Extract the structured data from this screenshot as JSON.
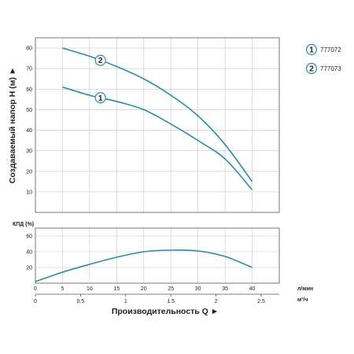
{
  "chart_data": [
    {
      "type": "line",
      "ylabel": "Создаваемый напор H (м) ►",
      "ylim": [
        0,
        85
      ],
      "yticks": [
        10,
        20,
        30,
        40,
        50,
        60,
        70,
        80
      ],
      "xlim": [
        0,
        45
      ],
      "xticks": [
        5,
        10,
        15,
        20,
        25,
        30,
        35,
        40
      ],
      "grid": true,
      "legend": "right",
      "series": [
        {
          "name": "777072",
          "marker": "1",
          "color": "#2a8ea0",
          "x": [
            5,
            10,
            15,
            20,
            25,
            30,
            35,
            40
          ],
          "y": [
            61,
            57,
            54,
            50,
            43,
            35,
            26,
            11
          ]
        },
        {
          "name": "777073",
          "marker": "2",
          "color": "#2a8ea0",
          "x": [
            5,
            10,
            15,
            20,
            25,
            30,
            35,
            40
          ],
          "y": [
            80,
            76,
            71,
            65,
            57,
            47,
            33,
            15
          ]
        }
      ]
    },
    {
      "type": "line",
      "ylabel": "КПД (%)",
      "ylim": [
        0,
        70
      ],
      "yticks": [
        20,
        40,
        60
      ],
      "xlim": [
        0,
        45
      ],
      "xticks": [
        0,
        5,
        10,
        15,
        20,
        25,
        30,
        35,
        40
      ],
      "xunit": "л/мин",
      "secondary_xticks": [
        0,
        0.5,
        1,
        1.5,
        2,
        2.5
      ],
      "secondary_xunit": "м³/ч",
      "xlabel": "Производительность Q ►",
      "grid": true,
      "series": [
        {
          "color": "#2a8ea0",
          "x": [
            0,
            5,
            10,
            15,
            20,
            25,
            30,
            35,
            40
          ],
          "y": [
            2,
            14,
            24,
            33,
            40,
            42,
            41,
            34,
            20
          ]
        }
      ]
    }
  ]
}
